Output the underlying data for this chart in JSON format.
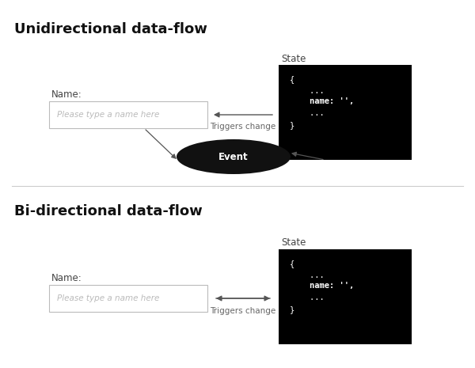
{
  "bg_color": "#ffffff",
  "title1": "Unidirectional data-flow",
  "title2": "Bi-directional data-flow",
  "title_fontsize": 13,
  "title_fontweight": "bold",
  "state_label": "State",
  "input_label": "Name:",
  "input_placeholder": "Please type a name here",
  "triggers_label": "Triggers change",
  "event_label": "Event",
  "input_box_color": "#ffffff",
  "input_border_color": "#bbbbbb",
  "input_placeholder_color": "#bbbbbb",
  "state_bg": "#000000",
  "state_fg": "#ffffff",
  "event_bg": "#111111",
  "event_fg": "#ffffff",
  "arrow_color": "#555555",
  "divider_color": "#cccccc",
  "code_lines": [
    "{",
    "    ...",
    "    name: '',",
    "    ...",
    "}"
  ],
  "code_bold_idx": 2,
  "label_color": "#444444",
  "triggers_color": "#666666"
}
